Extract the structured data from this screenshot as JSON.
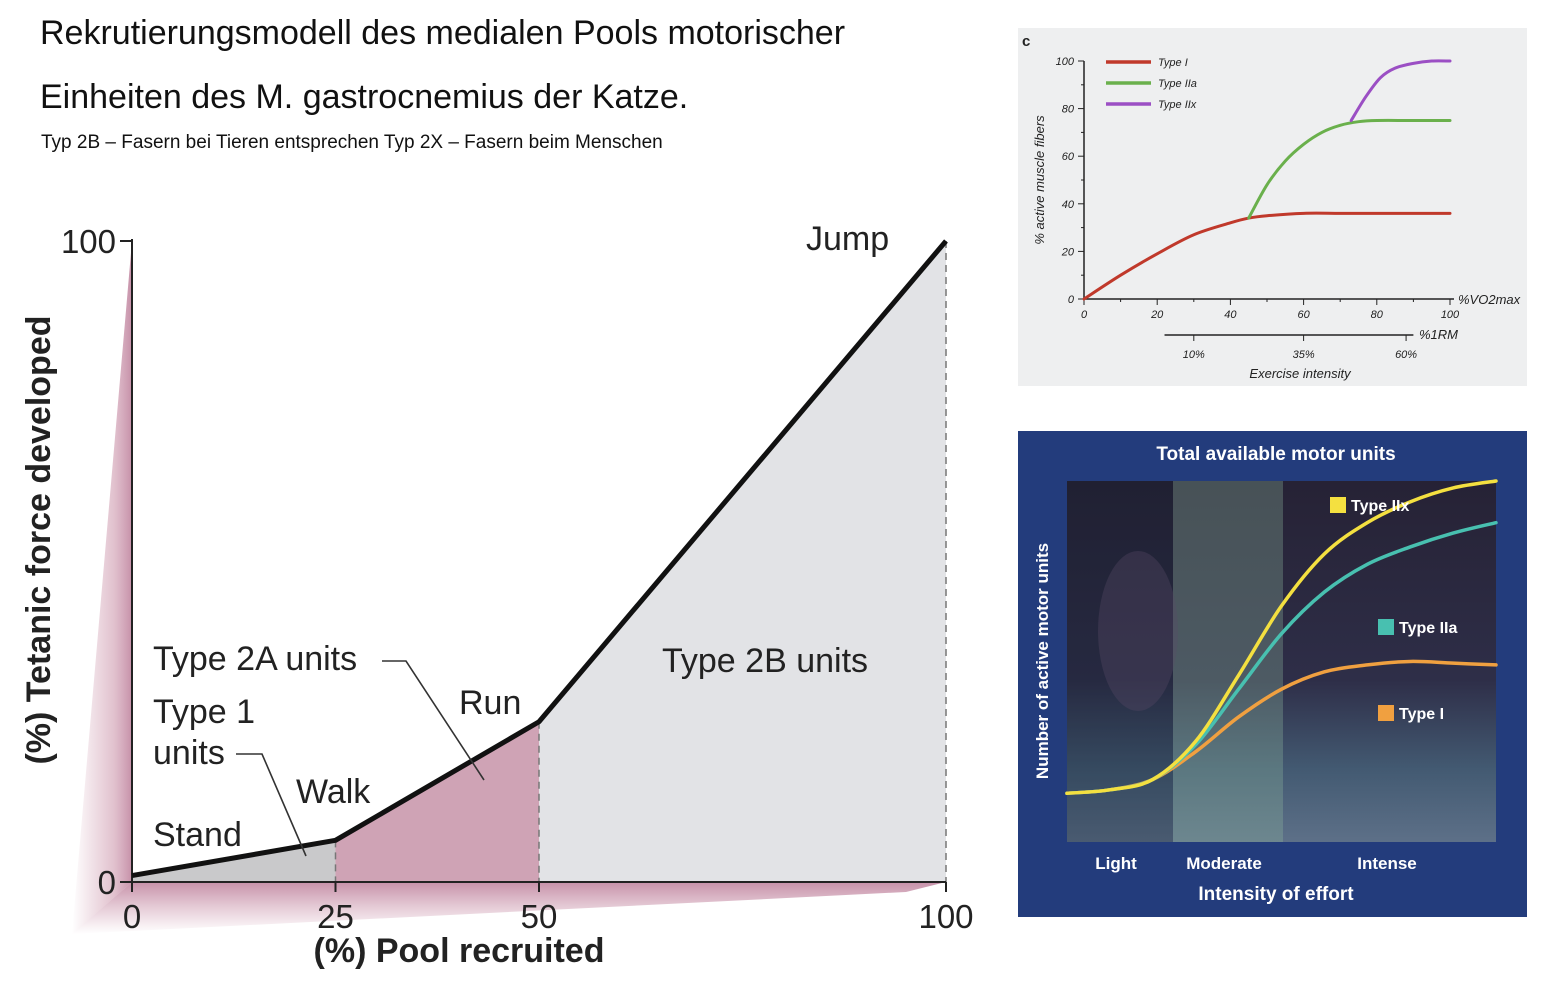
{
  "header": {
    "title_line1": "Rekrutierungsmodell des medialen Pools motorischer",
    "title_line2": "Einheiten des M. gastrocnemius der Katze.",
    "subtitle": "Typ 2B – Fasern bei Tieren entsprechen Typ 2X – Fasern beim Menschen"
  },
  "chart_data": [
    {
      "type": "area",
      "xlabel": "(%) Pool recruited",
      "ylabel": "(%) Tetanic force developed",
      "xlim": [
        0,
        100
      ],
      "ylim": [
        0,
        100
      ],
      "x_ticks": [
        "0",
        "25",
        "50",
        "100"
      ],
      "y_ticks": [
        "0",
        "100"
      ],
      "x": [
        0,
        25,
        50,
        100
      ],
      "y": [
        1,
        6.5,
        25,
        100
      ],
      "regions": [
        {
          "name": "Type 1 units",
          "label_line1": "Type 1",
          "label_line2": "units",
          "x_from": 0,
          "x_to": 25,
          "color": "#c9c9cb"
        },
        {
          "name": "Type 2A units",
          "x_from": 25,
          "x_to": 50,
          "color": "#cfa3b5"
        },
        {
          "name": "Type 2B units",
          "x_from": 50,
          "x_to": 100,
          "color": "#e2e3e6"
        }
      ],
      "annotations": [
        {
          "text": "Stand",
          "x": 12
        },
        {
          "text": "Walk",
          "x": 25
        },
        {
          "text": "Run",
          "x": 50
        },
        {
          "text": "Jump",
          "x": 100
        }
      ]
    },
    {
      "type": "line",
      "panel_label": "c",
      "xlabel": "%VO2max",
      "ylabel": "% active muscle fibers",
      "xlim": [
        0,
        100
      ],
      "ylim": [
        0,
        100
      ],
      "x_ticks": [
        "0",
        "20",
        "40",
        "60",
        "80",
        "100"
      ],
      "y_ticks": [
        "0",
        "20",
        "40",
        "60",
        "80",
        "100"
      ],
      "secondary_axis": {
        "label": "%1RM",
        "ticks": [
          {
            "x": 30,
            "label": "10%"
          },
          {
            "x": 60,
            "label": "35%"
          },
          {
            "x": 88,
            "label": "60%"
          }
        ]
      },
      "bottom_label": "Exercise intensity",
      "legend": "top-left",
      "series": [
        {
          "name": "Type I",
          "color": "#c0392b",
          "x": [
            0,
            10,
            20,
            30,
            40,
            45,
            50,
            60,
            70,
            80,
            90,
            100
          ],
          "y": [
            0,
            10,
            19,
            27,
            32,
            34,
            35,
            36,
            36,
            36,
            36,
            36
          ]
        },
        {
          "name": "Type IIa",
          "color": "#6ab04c",
          "x": [
            45,
            50,
            55,
            60,
            65,
            70,
            75,
            80,
            90,
            100
          ],
          "y": [
            34,
            48,
            58,
            65,
            70,
            73,
            74.5,
            75,
            75,
            75
          ]
        },
        {
          "name": "Type IIx",
          "color": "#9b4fc4",
          "x": [
            73,
            77,
            81,
            85,
            90,
            95,
            100
          ],
          "y": [
            75,
            85,
            93,
            97,
            99,
            100,
            100
          ]
        }
      ]
    },
    {
      "type": "line",
      "title": "Total available motor units",
      "xlabel": "Intensity of effort",
      "ylabel": "Number of active motor units",
      "x_categories": [
        "Light",
        "Moderate",
        "Intense"
      ],
      "xlim": [
        0,
        100
      ],
      "ylim": [
        0,
        100
      ],
      "series": [
        {
          "name": "Type I",
          "color": "#f0a040",
          "x": [
            0,
            10,
            20,
            30,
            40,
            50,
            60,
            70,
            80,
            90,
            100
          ],
          "y": [
            10,
            11,
            14,
            22,
            32,
            40,
            45,
            47,
            48,
            47.5,
            47
          ]
        },
        {
          "name": "Type IIa",
          "color": "#48c0b0",
          "x": [
            0,
            10,
            20,
            30,
            40,
            50,
            60,
            70,
            80,
            90,
            100
          ],
          "y": [
            10,
            11,
            14,
            24,
            40,
            56,
            68,
            76,
            81,
            85,
            88
          ]
        },
        {
          "name": "Type IIx",
          "color": "#f4e040",
          "x": [
            0,
            10,
            20,
            30,
            40,
            50,
            60,
            70,
            80,
            90,
            100
          ],
          "y": [
            10,
            11,
            14,
            25,
            44,
            64,
            79,
            88,
            94,
            98,
            100
          ]
        }
      ]
    }
  ]
}
